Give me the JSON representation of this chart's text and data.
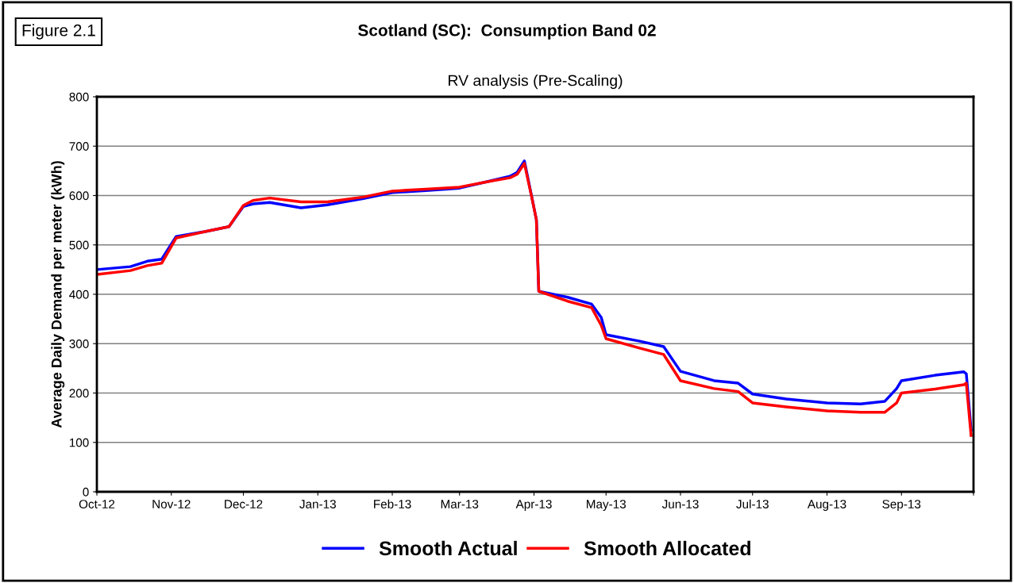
{
  "chart_data": {
    "type": "line",
    "title": "Scotland (SC):  Consumption Band 02",
    "subtitle": "RV analysis (Pre-Scaling)",
    "ylabel": "Average Daily Demand per meter (kWh)",
    "annotations": [
      "Figure 2.1"
    ],
    "xlim": [
      "2012-10-01",
      "2013-10-01"
    ],
    "ylim": [
      0,
      800
    ],
    "yticks": [
      0,
      100,
      200,
      300,
      400,
      500,
      600,
      700,
      800
    ],
    "xticks": [
      {
        "value": "2012-10-01",
        "label": "Oct-12"
      },
      {
        "value": "2012-11-01",
        "label": "Nov-12"
      },
      {
        "value": "2012-12-01",
        "label": "Dec-12"
      },
      {
        "value": "2013-01-01",
        "label": "Jan-13"
      },
      {
        "value": "2013-02-01",
        "label": "Feb-13"
      },
      {
        "value": "2013-03-01",
        "label": "Mar-13"
      },
      {
        "value": "2013-04-01",
        "label": "Apr-13"
      },
      {
        "value": "2013-05-01",
        "label": "May-13"
      },
      {
        "value": "2013-06-01",
        "label": "Jun-13"
      },
      {
        "value": "2013-07-01",
        "label": "Jul-13"
      },
      {
        "value": "2013-08-01",
        "label": "Aug-13"
      },
      {
        "value": "2013-09-01",
        "label": "Sep-13"
      },
      {
        "value": "2013-10-01",
        "label": null
      }
    ],
    "x": [
      "2012-10-01",
      "2012-10-15",
      "2012-10-22",
      "2012-10-28",
      "2012-11-03",
      "2012-11-15",
      "2012-11-25",
      "2012-12-01",
      "2012-12-05",
      "2012-12-12",
      "2012-12-25",
      "2013-01-05",
      "2013-01-20",
      "2013-02-01",
      "2013-02-15",
      "2013-03-01",
      "2013-03-15",
      "2013-03-22",
      "2013-03-25",
      "2013-03-28",
      "2013-03-31",
      "2013-04-02",
      "2013-04-03",
      "2013-04-15",
      "2013-04-25",
      "2013-04-29",
      "2013-05-01",
      "2013-05-15",
      "2013-05-25",
      "2013-06-01",
      "2013-06-15",
      "2013-06-25",
      "2013-07-01",
      "2013-07-15",
      "2013-08-01",
      "2013-08-15",
      "2013-08-25",
      "2013-08-30",
      "2013-09-01",
      "2013-09-15",
      "2013-09-27",
      "2013-09-28",
      "2013-09-30"
    ],
    "series": [
      {
        "name": "Smooth Actual",
        "color": "#0000ff",
        "values": [
          450,
          456,
          467,
          471,
          517,
          527,
          537,
          578,
          583,
          586,
          575,
          581,
          594,
          606,
          610,
          615,
          631,
          639,
          647,
          670,
          599,
          551,
          406,
          394,
          380,
          353,
          318,
          305,
          294,
          244,
          225,
          220,
          198,
          188,
          180,
          178,
          183,
          209,
          225,
          236,
          243,
          239,
          125
        ]
      },
      {
        "name": "Smooth Allocated",
        "color": "#ff0000",
        "values": [
          440,
          448,
          458,
          463,
          514,
          527,
          537,
          580,
          590,
          595,
          587,
          587,
          597,
          609,
          613,
          617,
          630,
          636,
          643,
          665,
          598,
          551,
          406,
          386,
          373,
          337,
          310,
          291,
          278,
          225,
          209,
          203,
          180,
          172,
          164,
          161,
          161,
          180,
          200,
          208,
          217,
          220,
          114
        ]
      }
    ],
    "grid": "y",
    "legend": "bottom",
    "marker": "none",
    "line_style": "solid"
  }
}
